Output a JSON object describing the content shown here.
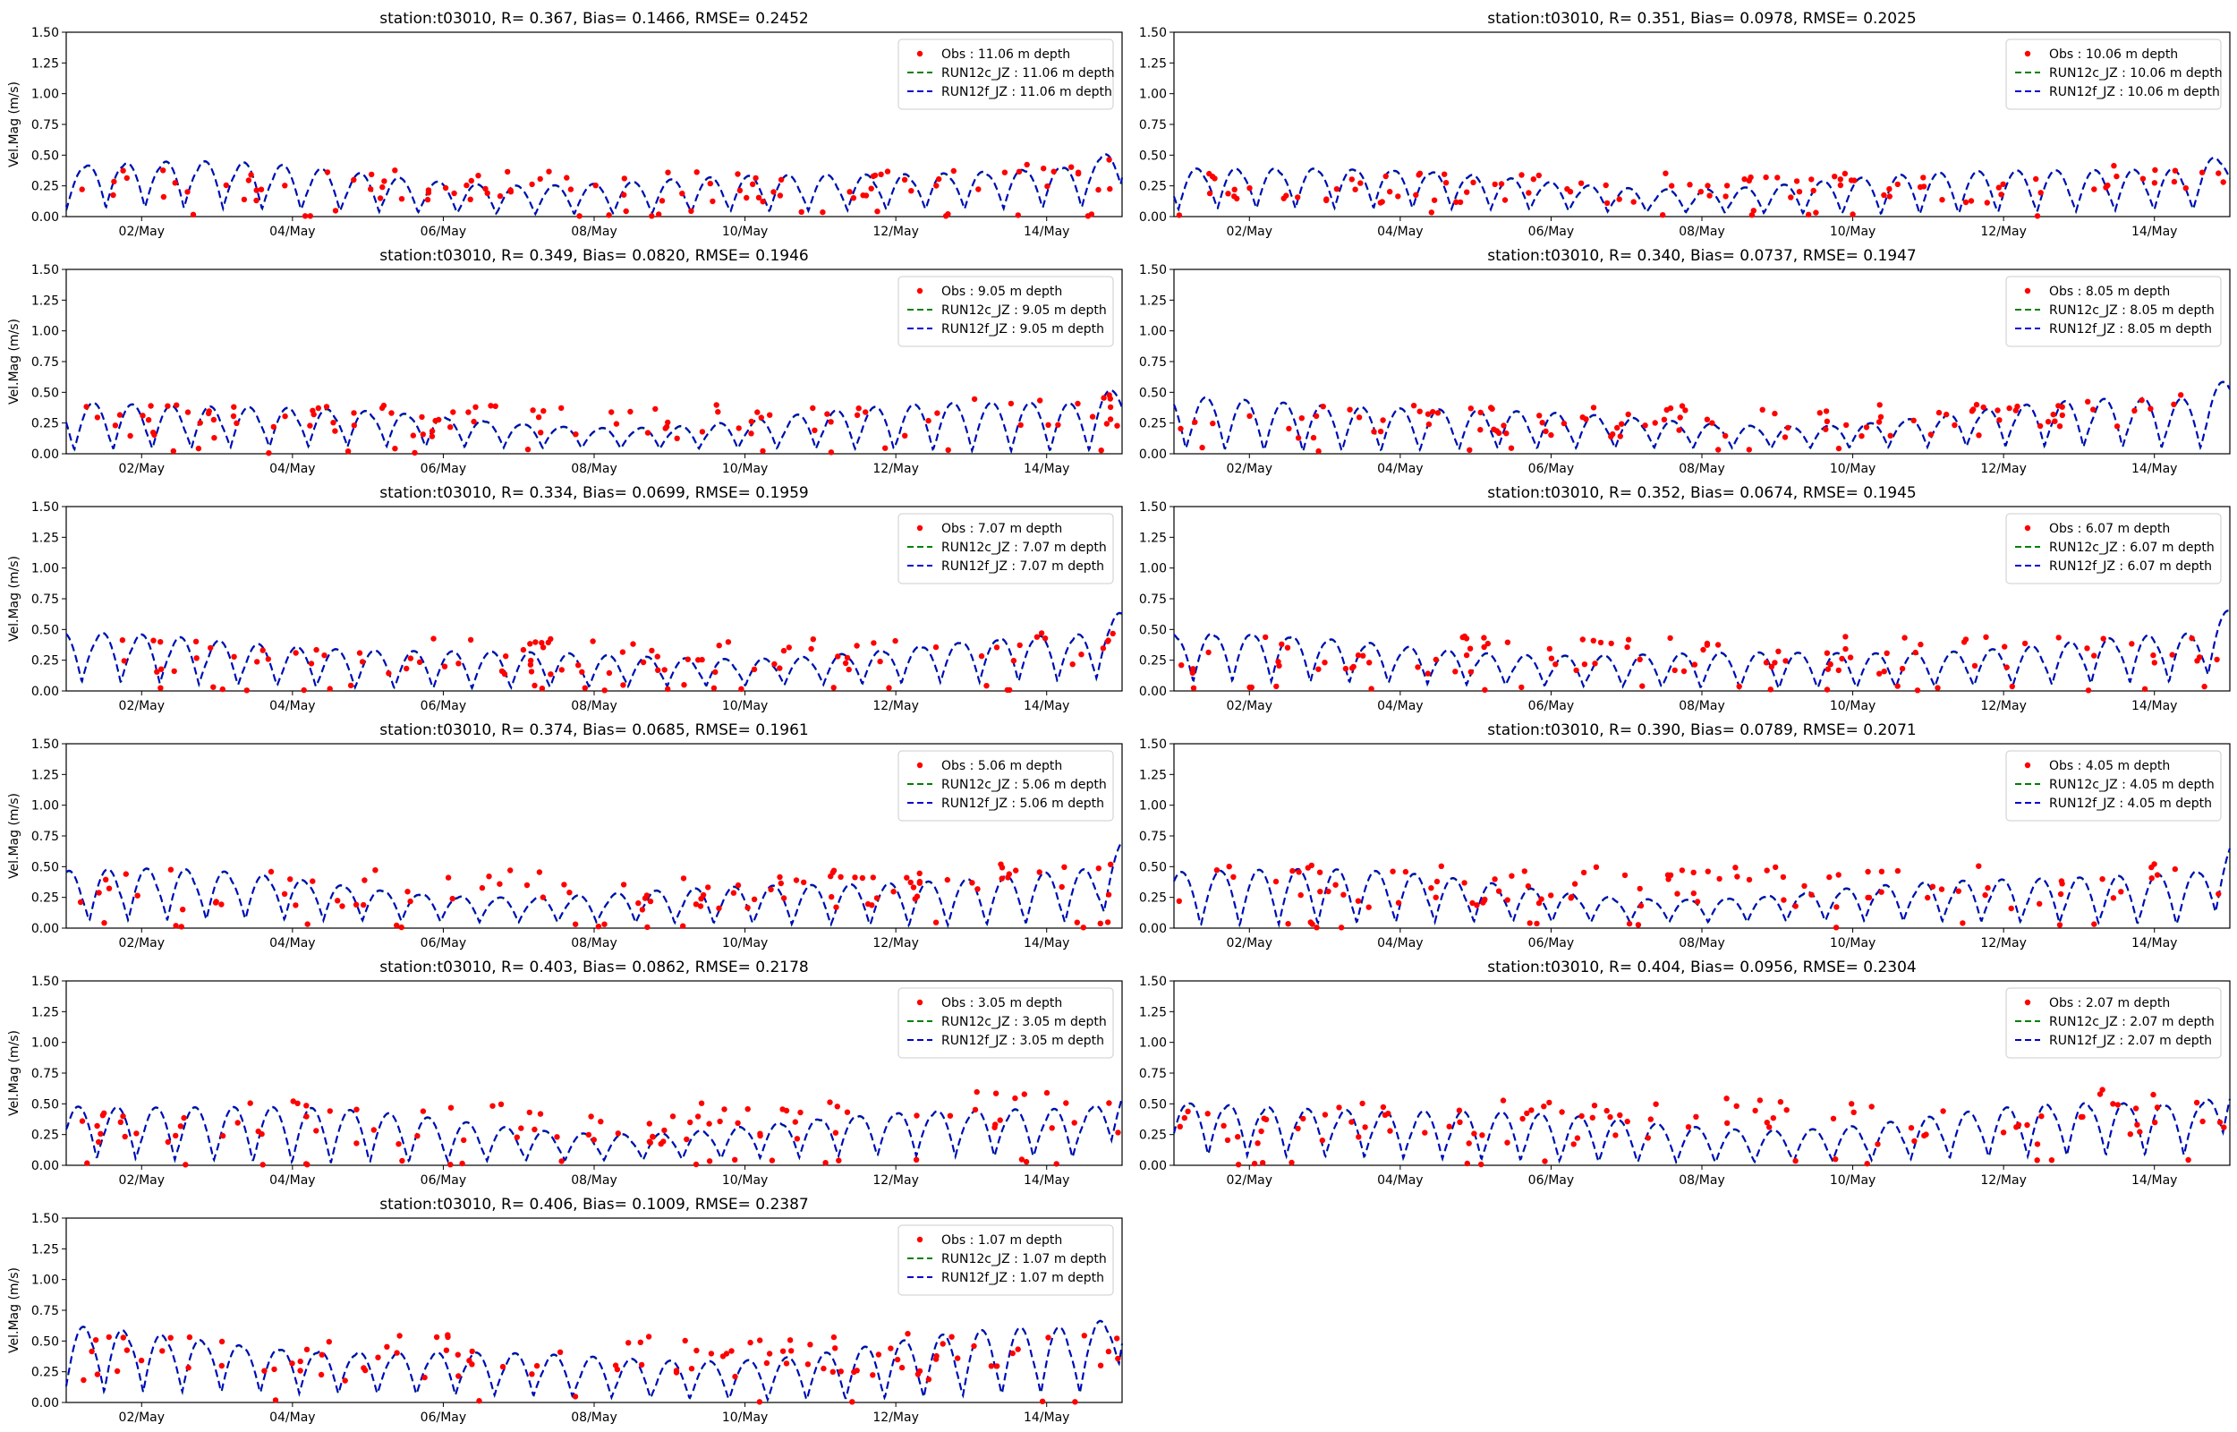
{
  "figure": {
    "background": "#ffffff",
    "colors": {
      "obs": "#ff0000",
      "run12c": "#008000",
      "run12f": "#0000cd",
      "axis": "#000000"
    }
  },
  "chart_data": [
    {
      "type": "line",
      "panel": "depth-11.06",
      "title": "station:t03010, R= 0.367, Bias= 0.1466, RMSE= 0.2452",
      "xlabel": "",
      "ylabel": "Vel.Mag (m/s)",
      "xlim": [
        1.0,
        15.0
      ],
      "ylim": [
        0,
        1.5
      ],
      "xticks": [
        2,
        4,
        6,
        8,
        10,
        12,
        14
      ],
      "xtick_labels": [
        "02/May",
        "04/May",
        "06/May",
        "08/May",
        "10/May",
        "12/May",
        "14/May"
      ],
      "yticks": [
        0,
        0.25,
        0.5,
        0.75,
        1.0,
        1.25,
        1.5
      ],
      "ytick_labels": [
        "0.00",
        "0.25",
        "0.50",
        "0.75",
        "1.00",
        "1.25",
        "1.50"
      ],
      "legend_position": "upper right",
      "model_amplitude": 0.55,
      "obs_level": 0.24,
      "seed": 11,
      "series": [
        {
          "name": "Obs : 11.06 m depth",
          "style": "markers",
          "color": "#ff0000"
        },
        {
          "name": "RUN12c_JZ : 11.06 m depth",
          "style": "dashed",
          "color": "#008000"
        },
        {
          "name": "RUN12f_JZ : 11.06 m depth",
          "style": "dashed",
          "color": "#0000cd"
        }
      ]
    },
    {
      "type": "line",
      "panel": "depth-10.06",
      "title": "station:t03010, R= 0.351, Bias= 0.0978, RMSE= 0.2025",
      "xlabel": "",
      "ylabel": "",
      "xlim": [
        1.0,
        15.0
      ],
      "ylim": [
        0,
        1.5
      ],
      "xticks": [
        2,
        4,
        6,
        8,
        10,
        12,
        14
      ],
      "xtick_labels": [
        "02/May",
        "04/May",
        "06/May",
        "08/May",
        "10/May",
        "12/May",
        "14/May"
      ],
      "yticks": [
        0,
        0.25,
        0.5,
        0.75,
        1.0,
        1.25,
        1.5
      ],
      "ytick_labels": [
        "0.00",
        "0.25",
        "0.50",
        "0.75",
        "1.00",
        "1.25",
        "1.50"
      ],
      "legend_position": "upper right",
      "model_amplitude": 0.52,
      "obs_level": 0.22,
      "seed": 10,
      "series": [
        {
          "name": "Obs : 10.06 m depth",
          "style": "markers",
          "color": "#ff0000"
        },
        {
          "name": "RUN12c_JZ : 10.06 m depth",
          "style": "dashed",
          "color": "#008000"
        },
        {
          "name": "RUN12f_JZ : 10.06 m depth",
          "style": "dashed",
          "color": "#0000cd"
        }
      ]
    },
    {
      "type": "line",
      "panel": "depth-9.05",
      "title": "station:t03010, R= 0.349, Bias= 0.0820, RMSE= 0.1946",
      "xlabel": "",
      "ylabel": "Vel.Mag (m/s)",
      "xlim": [
        1.0,
        15.0
      ],
      "ylim": [
        0,
        1.5
      ],
      "xticks": [
        2,
        4,
        6,
        8,
        10,
        12,
        14
      ],
      "xtick_labels": [
        "02/May",
        "04/May",
        "06/May",
        "08/May",
        "10/May",
        "12/May",
        "14/May"
      ],
      "yticks": [
        0,
        0.25,
        0.5,
        0.75,
        1.0,
        1.25,
        1.5
      ],
      "ytick_labels": [
        "0.00",
        "0.25",
        "0.50",
        "0.75",
        "1.00",
        "1.25",
        "1.50"
      ],
      "legend_position": "upper right",
      "model_amplitude": 0.52,
      "obs_level": 0.25,
      "seed": 9,
      "series": [
        {
          "name": "Obs : 9.05 m depth",
          "style": "markers",
          "color": "#ff0000"
        },
        {
          "name": "RUN12c_JZ : 9.05 m depth",
          "style": "dashed",
          "color": "#008000"
        },
        {
          "name": "RUN12f_JZ : 9.05 m depth",
          "style": "dashed",
          "color": "#0000cd"
        }
      ]
    },
    {
      "type": "line",
      "panel": "depth-8.05",
      "title": "station:t03010, R= 0.340, Bias= 0.0737, RMSE= 0.1947",
      "xlabel": "",
      "ylabel": "",
      "xlim": [
        1.0,
        15.0
      ],
      "ylim": [
        0,
        1.5
      ],
      "xticks": [
        2,
        4,
        6,
        8,
        10,
        12,
        14
      ],
      "xtick_labels": [
        "02/May",
        "04/May",
        "06/May",
        "08/May",
        "10/May",
        "12/May",
        "14/May"
      ],
      "yticks": [
        0,
        0.25,
        0.5,
        0.75,
        1.0,
        1.25,
        1.5
      ],
      "ytick_labels": [
        "0.00",
        "0.25",
        "0.50",
        "0.75",
        "1.00",
        "1.25",
        "1.50"
      ],
      "legend_position": "upper right",
      "model_amplitude": 0.54,
      "obs_level": 0.25,
      "seed": 8,
      "series": [
        {
          "name": "Obs : 8.05 m depth",
          "style": "markers",
          "color": "#ff0000"
        },
        {
          "name": "RUN12c_JZ : 8.05 m depth",
          "style": "dashed",
          "color": "#008000"
        },
        {
          "name": "RUN12f_JZ : 8.05 m depth",
          "style": "dashed",
          "color": "#0000cd"
        }
      ]
    },
    {
      "type": "line",
      "panel": "depth-7.07",
      "title": "station:t03010, R= 0.334, Bias= 0.0699, RMSE= 0.1959",
      "xlabel": "",
      "ylabel": "Vel.Mag (m/s)",
      "xlim": [
        1.0,
        15.0
      ],
      "ylim": [
        0,
        1.5
      ],
      "xticks": [
        2,
        4,
        6,
        8,
        10,
        12,
        14
      ],
      "xtick_labels": [
        "02/May",
        "04/May",
        "06/May",
        "08/May",
        "10/May",
        "12/May",
        "14/May"
      ],
      "yticks": [
        0,
        0.25,
        0.5,
        0.75,
        1.0,
        1.25,
        1.5
      ],
      "ytick_labels": [
        "0.00",
        "0.25",
        "0.50",
        "0.75",
        "1.00",
        "1.25",
        "1.50"
      ],
      "legend_position": "upper right",
      "model_amplitude": 0.55,
      "obs_level": 0.27,
      "seed": 7,
      "series": [
        {
          "name": "Obs : 7.07 m depth",
          "style": "markers",
          "color": "#ff0000"
        },
        {
          "name": "RUN12c_JZ : 7.07 m depth",
          "style": "dashed",
          "color": "#008000"
        },
        {
          "name": "RUN12f_JZ : 7.07 m depth",
          "style": "dashed",
          "color": "#0000cd"
        }
      ]
    },
    {
      "type": "line",
      "panel": "depth-6.07",
      "title": "station:t03010, R= 0.352, Bias= 0.0674, RMSE= 0.1945",
      "xlabel": "",
      "ylabel": "",
      "xlim": [
        1.0,
        15.0
      ],
      "ylim": [
        0,
        1.5
      ],
      "xticks": [
        2,
        4,
        6,
        8,
        10,
        12,
        14
      ],
      "xtick_labels": [
        "02/May",
        "04/May",
        "06/May",
        "08/May",
        "10/May",
        "12/May",
        "14/May"
      ],
      "yticks": [
        0,
        0.25,
        0.5,
        0.75,
        1.0,
        1.25,
        1.5
      ],
      "ytick_labels": [
        "0.00",
        "0.25",
        "0.50",
        "0.75",
        "1.00",
        "1.25",
        "1.50"
      ],
      "legend_position": "upper right",
      "model_amplitude": 0.56,
      "obs_level": 0.28,
      "seed": 6,
      "series": [
        {
          "name": "Obs : 6.07 m depth",
          "style": "markers",
          "color": "#ff0000"
        },
        {
          "name": "RUN12c_JZ : 6.07 m depth",
          "style": "dashed",
          "color": "#008000"
        },
        {
          "name": "RUN12f_JZ : 6.07 m depth",
          "style": "dashed",
          "color": "#0000cd"
        }
      ]
    },
    {
      "type": "line",
      "panel": "depth-5.06",
      "title": "station:t03010, R= 0.374, Bias= 0.0685, RMSE= 0.1961",
      "xlabel": "",
      "ylabel": "Vel.Mag (m/s)",
      "xlim": [
        1.0,
        15.0
      ],
      "ylim": [
        0,
        1.5
      ],
      "xticks": [
        2,
        4,
        6,
        8,
        10,
        12,
        14
      ],
      "xtick_labels": [
        "02/May",
        "04/May",
        "06/May",
        "08/May",
        "10/May",
        "12/May",
        "14/May"
      ],
      "yticks": [
        0,
        0.25,
        0.5,
        0.75,
        1.0,
        1.25,
        1.5
      ],
      "ytick_labels": [
        "0.00",
        "0.25",
        "0.50",
        "0.75",
        "1.00",
        "1.25",
        "1.50"
      ],
      "legend_position": "upper right",
      "model_amplitude": 0.57,
      "obs_level": 0.3,
      "seed": 5,
      "series": [
        {
          "name": "Obs : 5.06 m depth",
          "style": "markers",
          "color": "#ff0000"
        },
        {
          "name": "RUN12c_JZ : 5.06 m depth",
          "style": "dashed",
          "color": "#008000"
        },
        {
          "name": "RUN12f_JZ : 5.06 m depth",
          "style": "dashed",
          "color": "#0000cd"
        }
      ]
    },
    {
      "type": "line",
      "panel": "depth-4.05",
      "title": "station:t03010, R= 0.390, Bias= 0.0789, RMSE= 0.2071",
      "xlabel": "",
      "ylabel": "",
      "xlim": [
        1.0,
        15.0
      ],
      "ylim": [
        0,
        1.5
      ],
      "xticks": [
        2,
        4,
        6,
        8,
        10,
        12,
        14
      ],
      "xtick_labels": [
        "02/May",
        "04/May",
        "06/May",
        "08/May",
        "10/May",
        "12/May",
        "14/May"
      ],
      "yticks": [
        0,
        0.25,
        0.5,
        0.75,
        1.0,
        1.25,
        1.5
      ],
      "ytick_labels": [
        "0.00",
        "0.25",
        "0.50",
        "0.75",
        "1.00",
        "1.25",
        "1.50"
      ],
      "legend_position": "upper right",
      "model_amplitude": 0.58,
      "obs_level": 0.32,
      "seed": 4,
      "series": [
        {
          "name": "Obs : 4.05 m depth",
          "style": "markers",
          "color": "#ff0000"
        },
        {
          "name": "RUN12c_JZ : 4.05 m depth",
          "style": "dashed",
          "color": "#008000"
        },
        {
          "name": "RUN12f_JZ : 4.05 m depth",
          "style": "dashed",
          "color": "#0000cd"
        }
      ]
    },
    {
      "type": "line",
      "panel": "depth-3.05",
      "title": "station:t03010, R= 0.403, Bias= 0.0862, RMSE= 0.2178",
      "xlabel": "",
      "ylabel": "Vel.Mag (m/s)",
      "xlim": [
        1.0,
        15.0
      ],
      "ylim": [
        0,
        1.5
      ],
      "xticks": [
        2,
        4,
        6,
        8,
        10,
        12,
        14
      ],
      "xtick_labels": [
        "02/May",
        "04/May",
        "06/May",
        "08/May",
        "10/May",
        "12/May",
        "14/May"
      ],
      "yticks": [
        0,
        0.25,
        0.5,
        0.75,
        1.0,
        1.25,
        1.5
      ],
      "ytick_labels": [
        "0.00",
        "0.25",
        "0.50",
        "0.75",
        "1.00",
        "1.25",
        "1.50"
      ],
      "legend_position": "upper right",
      "model_amplitude": 0.62,
      "obs_level": 0.33,
      "seed": 3,
      "series": [
        {
          "name": "Obs : 3.05 m depth",
          "style": "markers",
          "color": "#ff0000"
        },
        {
          "name": "RUN12c_JZ : 3.05 m depth",
          "style": "dashed",
          "color": "#008000"
        },
        {
          "name": "RUN12f_JZ : 3.05 m depth",
          "style": "dashed",
          "color": "#0000cd"
        }
      ]
    },
    {
      "type": "line",
      "panel": "depth-2.07",
      "title": "station:t03010, R= 0.404, Bias= 0.0956, RMSE= 0.2304",
      "xlabel": "",
      "ylabel": "",
      "xlim": [
        1.0,
        15.0
      ],
      "ylim": [
        0,
        1.5
      ],
      "xticks": [
        2,
        4,
        6,
        8,
        10,
        12,
        14
      ],
      "xtick_labels": [
        "02/May",
        "04/May",
        "06/May",
        "08/May",
        "10/May",
        "12/May",
        "14/May"
      ],
      "yticks": [
        0,
        0.25,
        0.5,
        0.75,
        1.0,
        1.25,
        1.5
      ],
      "ytick_labels": [
        "0.00",
        "0.25",
        "0.50",
        "0.75",
        "1.00",
        "1.25",
        "1.50"
      ],
      "legend_position": "upper right",
      "model_amplitude": 0.66,
      "obs_level": 0.34,
      "seed": 2,
      "series": [
        {
          "name": "Obs : 2.07 m depth",
          "style": "markers",
          "color": "#ff0000"
        },
        {
          "name": "RUN12c_JZ : 2.07 m depth",
          "style": "dashed",
          "color": "#008000"
        },
        {
          "name": "RUN12f_JZ : 2.07 m depth",
          "style": "dashed",
          "color": "#0000cd"
        }
      ]
    },
    {
      "type": "line",
      "panel": "depth-1.07",
      "title": "station:t03010, R= 0.406, Bias= 0.1009, RMSE= 0.2387",
      "xlabel": "",
      "ylabel": "Vel.Mag (m/s)",
      "xlim": [
        1.0,
        15.0
      ],
      "ylim": [
        0,
        1.5
      ],
      "xticks": [
        2,
        4,
        6,
        8,
        10,
        12,
        14
      ],
      "xtick_labels": [
        "02/May",
        "04/May",
        "06/May",
        "08/May",
        "10/May",
        "12/May",
        "14/May"
      ],
      "yticks": [
        0,
        0.25,
        0.5,
        0.75,
        1.0,
        1.25,
        1.5
      ],
      "ytick_labels": [
        "0.00",
        "0.25",
        "0.50",
        "0.75",
        "1.00",
        "1.25",
        "1.50"
      ],
      "legend_position": "upper right",
      "model_amplitude": 0.72,
      "obs_level": 0.35,
      "seed": 1,
      "series": [
        {
          "name": "Obs : 1.07 m depth",
          "style": "markers",
          "color": "#ff0000"
        },
        {
          "name": "RUN12c_JZ : 1.07 m depth",
          "style": "dashed",
          "color": "#008000"
        },
        {
          "name": "RUN12f_JZ : 1.07 m depth",
          "style": "dashed",
          "color": "#0000cd"
        }
      ]
    }
  ]
}
